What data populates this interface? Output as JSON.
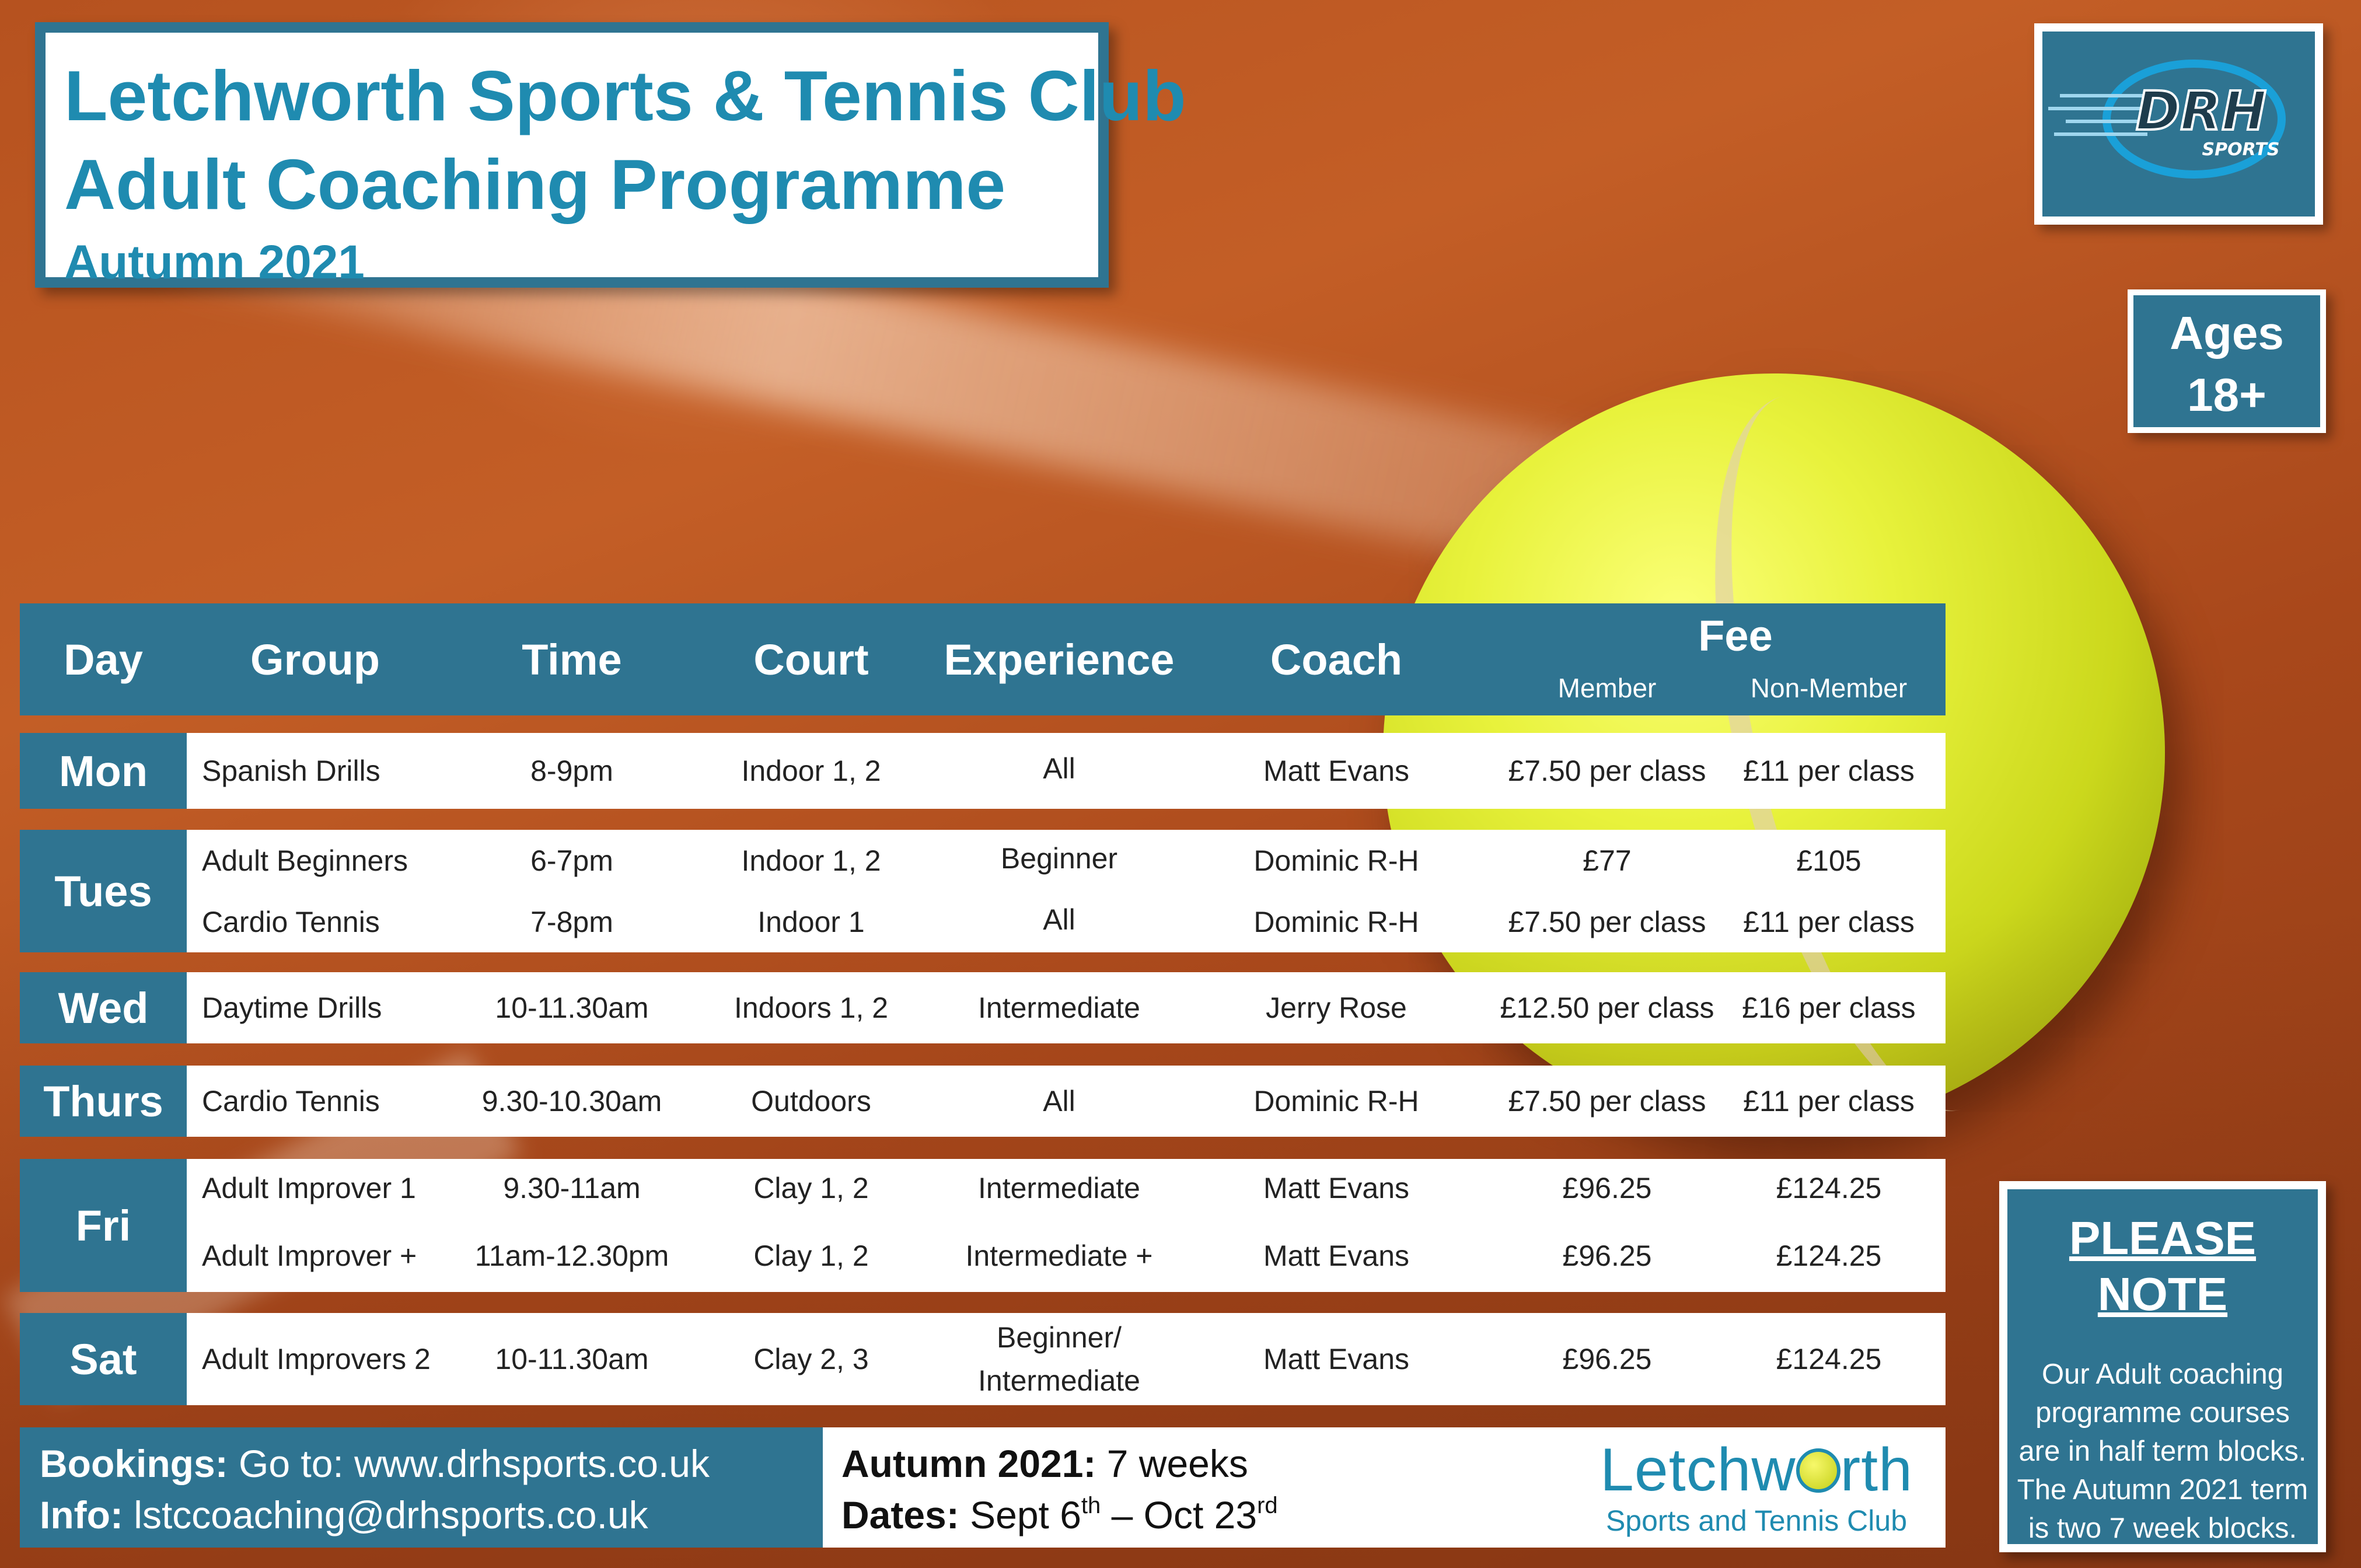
{
  "title": {
    "line1": "Letchworth Sports & Tennis Club",
    "line2": "Adult Coaching Programme",
    "term": "Autumn 2021"
  },
  "logo": {
    "brand_main": "DRH",
    "brand_sub": "SPORTS",
    "icon": "drh-sports-logo"
  },
  "ages": {
    "line1": "Ages",
    "line2": "18+"
  },
  "table": {
    "headers": {
      "day": "Day",
      "group": "Group",
      "time": "Time",
      "court": "Court",
      "experience": "Experience",
      "coach": "Coach",
      "fee": "Fee",
      "member": "Member",
      "non_member": "Non-Member"
    },
    "rows": [
      {
        "day": "Mon",
        "entries": [
          {
            "group": "Spanish Drills",
            "time": "8-9pm",
            "court": "Indoor 1, 2",
            "experience": "All",
            "coach": "Matt Evans",
            "member": "£7.50 per class",
            "non_member": "£11 per class"
          }
        ]
      },
      {
        "day": "Tues",
        "entries": [
          {
            "group": "Adult Beginners",
            "time": "6-7pm",
            "court": "Indoor 1, 2",
            "experience": "Beginner",
            "coach": "Dominic R-H",
            "member": "£77",
            "non_member": "£105"
          },
          {
            "group": "Cardio Tennis",
            "time": "7-8pm",
            "court": "Indoor 1",
            "experience": "All",
            "coach": "Dominic R-H",
            "member": "£7.50 per class",
            "non_member": "£11 per class"
          }
        ]
      },
      {
        "day": "Wed",
        "entries": [
          {
            "group": "Daytime Drills",
            "time": "10-11.30am",
            "court": "Indoors 1, 2",
            "experience": "Intermediate",
            "coach": "Jerry Rose",
            "member": "£12.50 per class",
            "non_member": "£16 per class"
          }
        ]
      },
      {
        "day": "Thurs",
        "entries": [
          {
            "group": "Cardio Tennis",
            "time": "9.30-10.30am",
            "court": "Outdoors",
            "experience": "All",
            "coach": "Dominic R-H",
            "member": "£7.50 per class",
            "non_member": "£11 per class"
          }
        ]
      },
      {
        "day": "Fri",
        "entries": [
          {
            "group": "Adult Improver 1",
            "time": "9.30-11am",
            "court": "Clay 1, 2",
            "experience": "Intermediate",
            "coach": "Matt Evans",
            "member": "£96.25",
            "non_member": "£124.25"
          },
          {
            "group": "Adult Improver +",
            "time": "11am-12.30pm",
            "court": "Clay 1, 2",
            "experience": "Intermediate +",
            "coach": "Matt Evans",
            "member": "£96.25",
            "non_member": "£124.25"
          }
        ]
      },
      {
        "day": "Sat",
        "entries": [
          {
            "group": "Adult Improvers 2",
            "time": "10-11.30am",
            "court": "Clay 2, 3",
            "experience": "Beginner/ Intermediate",
            "coach": "Matt Evans",
            "member": "£96.25",
            "non_member": "£124.25"
          }
        ]
      }
    ]
  },
  "footer": {
    "bookings_label": "Bookings:",
    "bookings_text": " Go to: www.drhsports.co.uk",
    "info_label": "Info:",
    "info_text": " lstccoaching@drhsports.co.uk",
    "term_label": "Autumn 2021:",
    "term_text": " 7 weeks",
    "dates_label": "Dates:",
    "dates_start": " Sept 6",
    "dates_start_sup": "th",
    "dates_sep": " – Oct 23",
    "dates_end_sup": "rd"
  },
  "club_logo": {
    "line1_pre": "Letchw",
    "line1_post": "rth",
    "line2": "Sports and Tennis Club"
  },
  "note": {
    "title": "PLEASE NOTE",
    "body": "Our Adult coaching programme courses are in half term blocks. The Autumn 2021 term is two 7 week blocks."
  }
}
